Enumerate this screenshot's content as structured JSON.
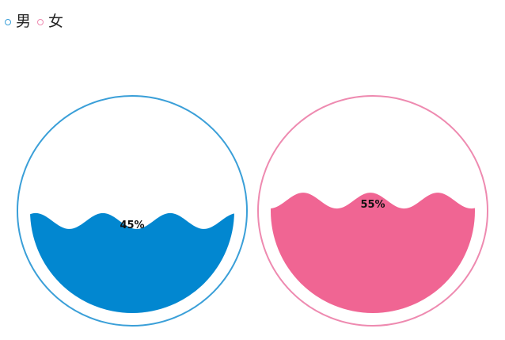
{
  "chart_data": {
    "type": "liquidfill",
    "legend": {
      "placement": "top-left",
      "items": [
        {
          "name": "男",
          "color": "#3a9fd8"
        },
        {
          "name": "女",
          "color": "#ee8ab0"
        }
      ]
    },
    "series": [
      {
        "name": "男",
        "value": 0.45,
        "label": "45%",
        "outline_color": "#3a9fd8",
        "fill_color": "#0287d0"
      },
      {
        "name": "女",
        "value": 0.55,
        "label": "55%",
        "outline_color": "#ee8ab0",
        "fill_color": "#f06593"
      }
    ]
  }
}
